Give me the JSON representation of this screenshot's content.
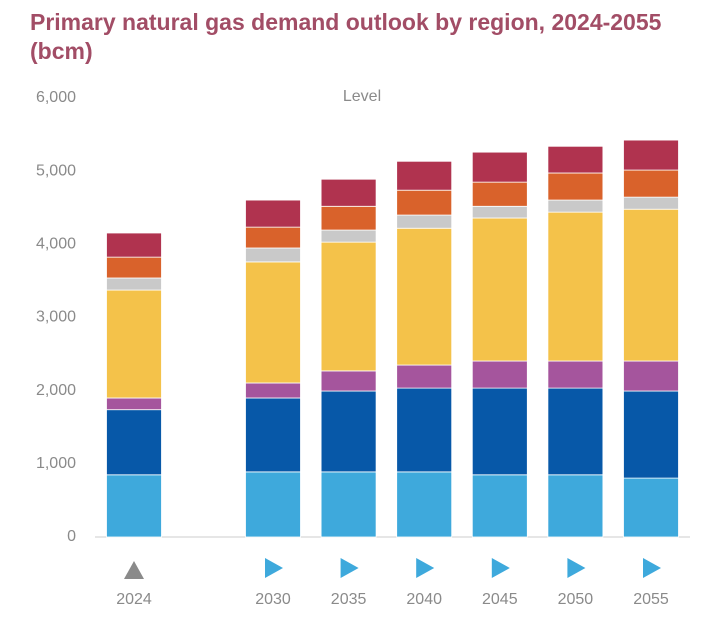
{
  "chart_data": {
    "type": "stacked_bar",
    "title": "Primary natural gas demand outlook by region, 2024-2055 (bcm)",
    "annotation": "Level",
    "categories": [
      "2024",
      "2030",
      "2035",
      "2040",
      "2045",
      "2050",
      "2055"
    ],
    "series": [
      {
        "color": "#3ea9dc",
        "values": [
          850,
          890,
          890,
          890,
          850,
          850,
          805
        ]
      },
      {
        "color": "#0758a8",
        "values": [
          890,
          1010,
          1105,
          1145,
          1185,
          1185,
          1190
        ]
      },
      {
        "color": "#a5559d",
        "values": [
          160,
          205,
          275,
          315,
          370,
          370,
          410
        ]
      },
      {
        "color": "#f4c24a",
        "values": [
          1475,
          1655,
          1760,
          1870,
          1955,
          2035,
          2075
        ]
      },
      {
        "color": "#c9c9c9",
        "values": [
          165,
          190,
          165,
          180,
          160,
          165,
          165
        ]
      },
      {
        "color": "#d9622b",
        "values": [
          285,
          285,
          325,
          340,
          330,
          370,
          370
        ]
      },
      {
        "color": "#b0334f",
        "values": [
          330,
          370,
          370,
          395,
          410,
          365,
          410
        ]
      }
    ],
    "ylim": [
      0,
      6000
    ],
    "yticks": [
      0,
      {
        "value": 1000,
        "label": "1,000"
      },
      {
        "value": 2000,
        "label": "2,000"
      },
      {
        "value": 3000,
        "label": "3,000"
      },
      {
        "value": 4000,
        "label": "4,000"
      },
      {
        "value": 5000,
        "label": "5,000"
      },
      {
        "value": 6000,
        "label": "6,000"
      }
    ],
    "grid": false
  }
}
